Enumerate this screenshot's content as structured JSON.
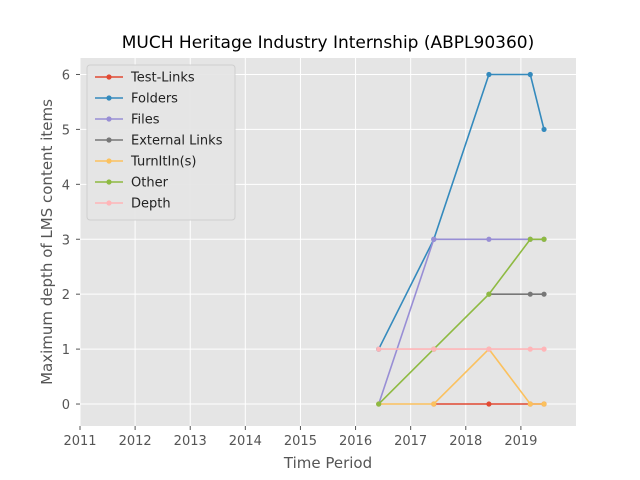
{
  "chart_data": {
    "type": "line",
    "title": "MUCH Heritage Industry Internship (ABPL90360)",
    "xlabel": "Time Period",
    "ylabel": "Maximum depth of LMS content items",
    "xlim": [
      2011,
      2020
    ],
    "ylim": [
      -0.4,
      6.3
    ],
    "xticks": [
      "2011",
      "2012",
      "2013",
      "2014",
      "2015",
      "2016",
      "2017",
      "2018",
      "2019"
    ],
    "yticks": [
      "0",
      "1",
      "2",
      "3",
      "4",
      "5",
      "6"
    ],
    "grid": true,
    "legend_position": "top-left",
    "series": [
      {
        "name": "Test-Links",
        "color": "#e24a33",
        "x": [
          2017.42,
          2018.42,
          2019.17,
          2019.42
        ],
        "y": [
          0,
          0,
          0,
          0
        ]
      },
      {
        "name": "Folders",
        "color": "#348abd",
        "x": [
          2016.42,
          2017.42,
          2018.42,
          2019.17,
          2019.42
        ],
        "y": [
          1,
          3,
          6,
          6,
          5
        ]
      },
      {
        "name": "Files",
        "color": "#988ed5",
        "x": [
          2016.42,
          2017.42,
          2018.42,
          2019.17,
          2019.42
        ],
        "y": [
          0,
          3,
          3,
          3,
          3
        ]
      },
      {
        "name": "External Links",
        "color": "#777777",
        "x": [
          2018.42,
          2019.17,
          2019.42
        ],
        "y": [
          2,
          2,
          2
        ]
      },
      {
        "name": "TurnItIn(s)",
        "color": "#fbc15e",
        "x": [
          2016.42,
          2017.42,
          2018.42,
          2019.17,
          2019.42
        ],
        "y": [
          0,
          0,
          1,
          0,
          0
        ]
      },
      {
        "name": "Other",
        "color": "#8eba42",
        "x": [
          2016.42,
          2017.42,
          2018.42,
          2019.17,
          2019.42
        ],
        "y": [
          0,
          1,
          2,
          3,
          3
        ]
      },
      {
        "name": "Depth",
        "color": "#ffb5b8",
        "x": [
          2016.42,
          2017.42,
          2018.42,
          2019.17,
          2019.42
        ],
        "y": [
          1,
          1,
          1,
          1,
          1
        ]
      }
    ]
  }
}
